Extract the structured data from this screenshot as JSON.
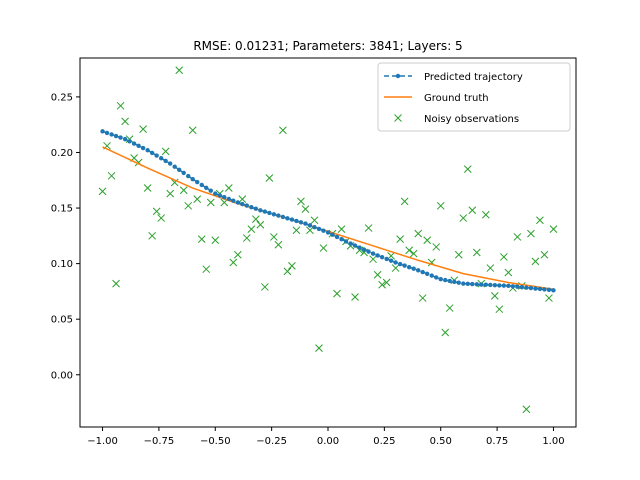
{
  "chart_data": {
    "type": "line",
    "title": "RMSE: 0.01231; Parameters: 3841; Layers: 5",
    "xlabel": "",
    "ylabel": "",
    "xlim": [
      -1.1,
      1.1
    ],
    "ylim": [
      -0.047,
      0.285
    ],
    "xticks": [
      -1.0,
      -0.75,
      -0.5,
      -0.25,
      0.0,
      0.25,
      0.5,
      0.75,
      1.0
    ],
    "xtick_labels": [
      "−1.00",
      "−0.75",
      "−0.50",
      "−0.25",
      "0.00",
      "0.25",
      "0.50",
      "0.75",
      "1.00"
    ],
    "yticks": [
      0.0,
      0.05,
      0.1,
      0.15,
      0.2,
      0.25
    ],
    "ytick_labels": [
      "0.00",
      "0.05",
      "0.10",
      "0.15",
      "0.20",
      "0.25"
    ],
    "grid": false,
    "legend_position": "top-right",
    "colors": {
      "predicted": "#1f77b4",
      "ground_truth": "#ff7f0e",
      "noisy": "#2ca02c"
    },
    "series": [
      {
        "name": "Predicted trajectory",
        "style": "dashed-dots",
        "x": [
          -1.0,
          -0.9,
          -0.8,
          -0.7,
          -0.6,
          -0.5,
          -0.4,
          -0.3,
          -0.2,
          -0.1,
          0.0,
          0.1,
          0.2,
          0.3,
          0.4,
          0.5,
          0.55,
          0.6,
          0.7,
          0.8,
          0.9,
          1.0
        ],
        "y": [
          0.219,
          0.212,
          0.202,
          0.19,
          0.176,
          0.163,
          0.155,
          0.148,
          0.142,
          0.136,
          0.128,
          0.118,
          0.109,
          0.101,
          0.094,
          0.086,
          0.084,
          0.082,
          0.081,
          0.08,
          0.078,
          0.076
        ]
      },
      {
        "name": "Ground truth",
        "style": "solid",
        "x": [
          -1.0,
          -0.8,
          -0.6,
          -0.4,
          -0.2,
          0.0,
          0.2,
          0.4,
          0.6,
          0.8,
          1.0
        ],
        "y": [
          0.205,
          0.186,
          0.168,
          0.154,
          0.142,
          0.129,
          0.116,
          0.103,
          0.091,
          0.083,
          0.077
        ]
      },
      {
        "name": "Noisy observations",
        "style": "markers-x",
        "x": [
          -1.0,
          -0.98,
          -0.96,
          -0.94,
          -0.92,
          -0.9,
          -0.88,
          -0.86,
          -0.84,
          -0.82,
          -0.8,
          -0.78,
          -0.76,
          -0.74,
          -0.72,
          -0.7,
          -0.68,
          -0.66,
          -0.64,
          -0.62,
          -0.6,
          -0.58,
          -0.56,
          -0.54,
          -0.52,
          -0.5,
          -0.48,
          -0.46,
          -0.44,
          -0.42,
          -0.4,
          -0.38,
          -0.36,
          -0.34,
          -0.32,
          -0.3,
          -0.28,
          -0.26,
          -0.24,
          -0.22,
          -0.2,
          -0.18,
          -0.16,
          -0.14,
          -0.12,
          -0.1,
          -0.08,
          -0.06,
          -0.04,
          -0.02,
          0.02,
          0.04,
          0.06,
          0.08,
          0.1,
          0.12,
          0.14,
          0.16,
          0.18,
          0.2,
          0.22,
          0.24,
          0.26,
          0.28,
          0.3,
          0.32,
          0.34,
          0.36,
          0.38,
          0.4,
          0.42,
          0.44,
          0.46,
          0.48,
          0.5,
          0.52,
          0.54,
          0.56,
          0.58,
          0.6,
          0.62,
          0.64,
          0.66,
          0.68,
          0.7,
          0.72,
          0.74,
          0.76,
          0.78,
          0.8,
          0.82,
          0.84,
          0.86,
          0.88,
          0.9,
          0.92,
          0.94,
          0.96,
          0.98,
          1.0
        ],
        "y": [
          0.165,
          0.206,
          0.179,
          0.082,
          0.242,
          0.228,
          0.212,
          0.195,
          0.191,
          0.221,
          0.168,
          0.125,
          0.147,
          0.141,
          0.201,
          0.163,
          0.173,
          0.274,
          0.166,
          0.152,
          0.22,
          0.158,
          0.122,
          0.095,
          0.155,
          0.121,
          0.163,
          0.155,
          0.168,
          0.101,
          0.108,
          0.158,
          0.123,
          0.131,
          0.14,
          0.135,
          0.079,
          0.177,
          0.124,
          0.117,
          0.22,
          0.093,
          0.098,
          0.13,
          0.156,
          0.149,
          0.13,
          0.139,
          0.024,
          0.114,
          0.127,
          0.073,
          0.131,
          0.12,
          0.116,
          0.07,
          0.112,
          0.11,
          0.132,
          0.104,
          0.09,
          0.081,
          0.083,
          0.107,
          0.096,
          0.122,
          0.156,
          0.112,
          0.109,
          0.127,
          0.069,
          0.121,
          0.101,
          0.115,
          0.152,
          0.038,
          0.06,
          0.085,
          0.108,
          0.141,
          0.185,
          0.148,
          0.11,
          0.082,
          0.144,
          0.096,
          0.071,
          0.059,
          0.106,
          0.092,
          0.078,
          0.124,
          0.08,
          -0.031,
          0.127,
          0.102,
          0.139,
          0.108,
          0.069,
          0.131
        ]
      }
    ]
  }
}
